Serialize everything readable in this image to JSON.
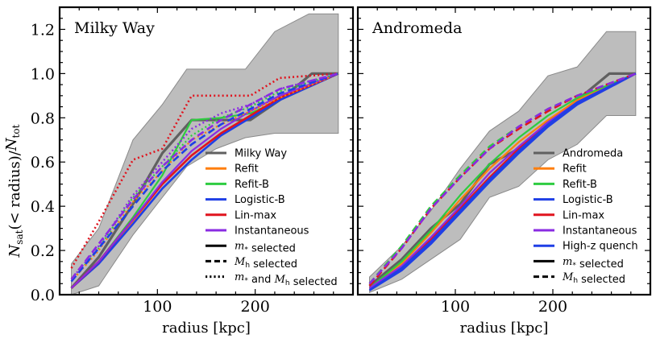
{
  "ylabel": "N_sat(< radius)/N_tot",
  "chart_data": [
    {
      "type": "line",
      "title": "Milky Way",
      "xlabel": "radius [kpc]",
      "ylabel": "N_sat(< radius)/N_tot",
      "xlim": [
        0,
        300
      ],
      "ylim": [
        0,
        1.3
      ],
      "xticks": [
        100,
        200
      ],
      "yticks": [
        "0.0",
        "0.2",
        "0.4",
        "0.6",
        "0.8",
        "1.0",
        "1.2"
      ],
      "legend_position": "bottom-right",
      "band": {
        "x": [
          12,
          40,
          75,
          105,
          130,
          160,
          190,
          220,
          255,
          285
        ],
        "upper": [
          0.14,
          0.3,
          0.7,
          0.86,
          1.02,
          1.02,
          1.02,
          1.19,
          1.27,
          1.27
        ],
        "lower": [
          0.0,
          0.04,
          0.27,
          0.44,
          0.58,
          0.66,
          0.71,
          0.73,
          0.73,
          0.73
        ]
      },
      "series": [
        {
          "name": "Milky Way",
          "color": "#606060",
          "width": 3.2,
          "style": "solid",
          "x": [
            12,
            40,
            75,
            105,
            135,
            165,
            195,
            225,
            258,
            285
          ],
          "y": [
            0.03,
            0.17,
            0.41,
            0.64,
            0.79,
            0.79,
            0.79,
            0.88,
            1.0,
            1.0
          ]
        },
        {
          "name": "Refit",
          "color": "#ff7f0e",
          "width": 2.2,
          "style": "solid",
          "x": [
            12,
            40,
            75,
            105,
            135,
            165,
            195,
            225,
            285
          ],
          "y": [
            0.03,
            0.15,
            0.33,
            0.5,
            0.63,
            0.73,
            0.81,
            0.88,
            1.0
          ]
        },
        {
          "name": "Refit-B",
          "color": "#2ecc40",
          "width": 2.2,
          "style": "solid",
          "x": [
            12,
            40,
            75,
            105,
            135,
            165,
            195,
            225,
            285
          ],
          "y": [
            0.03,
            0.15,
            0.35,
            0.54,
            0.79,
            0.8,
            0.82,
            0.88,
            1.0
          ]
        },
        {
          "name": "Logistic-B",
          "color": "#1f3fe6",
          "width": 2.6,
          "style": "solid",
          "x": [
            12,
            40,
            75,
            105,
            135,
            165,
            195,
            225,
            285
          ],
          "y": [
            0.03,
            0.14,
            0.32,
            0.48,
            0.61,
            0.72,
            0.8,
            0.88,
            1.0
          ]
        },
        {
          "name": "Lin-max",
          "color": "#e0141e",
          "width": 2.6,
          "style": "solid",
          "x": [
            12,
            40,
            75,
            105,
            135,
            165,
            195,
            225,
            285
          ],
          "y": [
            0.03,
            0.15,
            0.34,
            0.5,
            0.63,
            0.73,
            0.81,
            0.89,
            1.0
          ]
        },
        {
          "name": "Instantaneous",
          "color": "#8a2be2",
          "width": 2.2,
          "style": "solid",
          "x": [
            12,
            40,
            75,
            105,
            135,
            165,
            195,
            225,
            285
          ],
          "y": [
            0.03,
            0.15,
            0.34,
            0.51,
            0.65,
            0.75,
            0.83,
            0.9,
            1.0
          ]
        },
        {
          "name": "Lin-max (m*, Mh)",
          "color": "#e0141e",
          "width": 2.6,
          "style": "dotted",
          "x": [
            12,
            40,
            75,
            105,
            135,
            165,
            195,
            225,
            285
          ],
          "y": [
            0.12,
            0.33,
            0.61,
            0.66,
            0.9,
            0.9,
            0.9,
            0.98,
            1.0
          ]
        },
        {
          "name": "Instantaneous (m*, Mh)",
          "color": "#8a2be2",
          "width": 2.4,
          "style": "dotted",
          "x": [
            12,
            40,
            75,
            105,
            135,
            165,
            195,
            225,
            285
          ],
          "y": [
            0.07,
            0.22,
            0.45,
            0.6,
            0.75,
            0.82,
            0.86,
            0.93,
            1.0
          ]
        },
        {
          "name": "Refit-B (m*, Mh)",
          "color": "#2ecc40",
          "width": 2.2,
          "style": "dotted",
          "x": [
            12,
            40,
            75,
            105,
            135,
            165,
            195,
            225,
            285
          ],
          "y": [
            0.06,
            0.21,
            0.44,
            0.58,
            0.72,
            0.8,
            0.85,
            0.92,
            1.0
          ]
        },
        {
          "name": "Refit (m*, Mh)",
          "color": "#ff7f0e",
          "width": 2.2,
          "style": "dotted",
          "x": [
            12,
            40,
            75,
            105,
            135,
            165,
            195,
            225,
            285
          ],
          "y": [
            0.06,
            0.2,
            0.42,
            0.56,
            0.7,
            0.77,
            0.83,
            0.89,
            1.0
          ]
        },
        {
          "name": "Logistic-B (Mh)",
          "color": "#1f3fe6",
          "width": 2.6,
          "style": "dashed",
          "x": [
            12,
            40,
            75,
            105,
            135,
            165,
            195,
            225,
            285
          ],
          "y": [
            0.06,
            0.21,
            0.4,
            0.56,
            0.68,
            0.77,
            0.84,
            0.91,
            1.0
          ]
        },
        {
          "name": "Instantaneous (Mh)",
          "color": "#8a2be2",
          "width": 2.6,
          "style": "dashed",
          "x": [
            12,
            40,
            75,
            105,
            135,
            165,
            195,
            225,
            285
          ],
          "y": [
            0.07,
            0.23,
            0.43,
            0.58,
            0.7,
            0.79,
            0.86,
            0.93,
            1.0
          ]
        }
      ],
      "legend": [
        {
          "label": "Milky Way",
          "color": "#606060",
          "style": "solid"
        },
        {
          "label": "Refit",
          "color": "#ff7f0e",
          "style": "solid"
        },
        {
          "label": "Refit-B",
          "color": "#2ecc40",
          "style": "solid"
        },
        {
          "label": "Logistic-B",
          "color": "#1f3fe6",
          "style": "solid"
        },
        {
          "label": "Lin-max",
          "color": "#e0141e",
          "style": "solid"
        },
        {
          "label": "Instantaneous",
          "color": "#8a2be2",
          "style": "solid"
        },
        {
          "label": "m* selected",
          "color": "#000000",
          "style": "solid"
        },
        {
          "label": "Mh selected",
          "color": "#000000",
          "style": "dashed"
        },
        {
          "label": "m* and Mh selected",
          "color": "#000000",
          "style": "dotted"
        }
      ]
    },
    {
      "type": "line",
      "title": "Andromeda",
      "xlabel": "radius [kpc]",
      "xlim": [
        0,
        300
      ],
      "ylim": [
        0,
        1.3
      ],
      "xticks": [
        100,
        200
      ],
      "legend_position": "bottom-right",
      "band": {
        "x": [
          12,
          45,
          75,
          105,
          135,
          165,
          195,
          225,
          255,
          285
        ],
        "upper": [
          0.08,
          0.22,
          0.38,
          0.57,
          0.74,
          0.83,
          0.99,
          1.03,
          1.19,
          1.19
        ],
        "lower": [
          0.01,
          0.07,
          0.16,
          0.25,
          0.44,
          0.49,
          0.61,
          0.68,
          0.81,
          0.81
        ]
      },
      "series": [
        {
          "name": "Andromeda",
          "color": "#606060",
          "width": 3.2,
          "style": "solid",
          "x": [
            12,
            45,
            75,
            105,
            135,
            165,
            195,
            225,
            258,
            285
          ],
          "y": [
            0.04,
            0.16,
            0.3,
            0.41,
            0.59,
            0.66,
            0.78,
            0.88,
            1.0,
            1.0
          ]
        },
        {
          "name": "Refit",
          "color": "#ff7f0e",
          "width": 2.2,
          "style": "solid",
          "x": [
            12,
            45,
            75,
            105,
            135,
            165,
            195,
            225,
            285
          ],
          "y": [
            0.03,
            0.14,
            0.28,
            0.43,
            0.57,
            0.69,
            0.79,
            0.88,
            1.0
          ]
        },
        {
          "name": "Refit-B",
          "color": "#2ecc40",
          "width": 2.2,
          "style": "solid",
          "x": [
            12,
            45,
            75,
            105,
            135,
            165,
            195,
            225,
            285
          ],
          "y": [
            0.03,
            0.15,
            0.29,
            0.45,
            0.59,
            0.71,
            0.81,
            0.89,
            1.0
          ]
        },
        {
          "name": "Logistic-B",
          "color": "#1f3fe6",
          "width": 2.6,
          "style": "solid",
          "x": [
            12,
            45,
            75,
            105,
            135,
            165,
            195,
            225,
            285
          ],
          "y": [
            0.02,
            0.11,
            0.23,
            0.37,
            0.51,
            0.64,
            0.76,
            0.86,
            1.0
          ]
        },
        {
          "name": "Lin-max",
          "color": "#e0141e",
          "width": 2.4,
          "style": "solid",
          "x": [
            12,
            45,
            75,
            105,
            135,
            165,
            195,
            225,
            285
          ],
          "y": [
            0.03,
            0.12,
            0.25,
            0.39,
            0.53,
            0.66,
            0.77,
            0.87,
            1.0
          ]
        },
        {
          "name": "Instantaneous",
          "color": "#8a2be2",
          "width": 2.2,
          "style": "solid",
          "x": [
            12,
            45,
            75,
            105,
            135,
            165,
            195,
            225,
            285
          ],
          "y": [
            0.03,
            0.13,
            0.26,
            0.4,
            0.55,
            0.67,
            0.78,
            0.87,
            1.0
          ]
        },
        {
          "name": "High-z quench",
          "color": "#1f3fe6",
          "width": 2.6,
          "style": "solid",
          "x": [
            12,
            45,
            75,
            105,
            135,
            165,
            195,
            225,
            285
          ],
          "y": [
            0.02,
            0.12,
            0.24,
            0.38,
            0.52,
            0.65,
            0.77,
            0.87,
            1.0
          ]
        },
        {
          "name": "Refit-B (Mh)",
          "color": "#2ecc40",
          "width": 2.6,
          "style": "dashed",
          "x": [
            12,
            45,
            75,
            105,
            135,
            165,
            195,
            225,
            285
          ],
          "y": [
            0.05,
            0.22,
            0.4,
            0.54,
            0.67,
            0.76,
            0.84,
            0.9,
            1.0
          ]
        },
        {
          "name": "Lin-max (Mh)",
          "color": "#e0141e",
          "width": 2.6,
          "style": "dashed",
          "x": [
            12,
            45,
            75,
            105,
            135,
            165,
            195,
            225,
            285
          ],
          "y": [
            0.04,
            0.21,
            0.39,
            0.53,
            0.66,
            0.75,
            0.83,
            0.9,
            1.0
          ]
        },
        {
          "name": "Instantaneous (Mh)",
          "color": "#8a2be2",
          "width": 2.6,
          "style": "dashed",
          "x": [
            12,
            45,
            75,
            105,
            135,
            165,
            195,
            225,
            285
          ],
          "y": [
            0.05,
            0.21,
            0.39,
            0.53,
            0.66,
            0.76,
            0.84,
            0.9,
            1.0
          ]
        }
      ],
      "legend": [
        {
          "label": "Andromeda",
          "color": "#606060",
          "style": "solid"
        },
        {
          "label": "Refit",
          "color": "#ff7f0e",
          "style": "solid"
        },
        {
          "label": "Refit-B",
          "color": "#2ecc40",
          "style": "solid"
        },
        {
          "label": "Logistic-B",
          "color": "#1f3fe6",
          "style": "solid"
        },
        {
          "label": "Lin-max",
          "color": "#e0141e",
          "style": "solid"
        },
        {
          "label": "Instantaneous",
          "color": "#8a2be2",
          "style": "solid"
        },
        {
          "label": "High-z quench",
          "color": "#1f3fe6",
          "style": "solid"
        },
        {
          "label": "m* selected",
          "color": "#000000",
          "style": "solid"
        },
        {
          "label": "Mh selected",
          "color": "#000000",
          "style": "dashed"
        }
      ]
    }
  ]
}
